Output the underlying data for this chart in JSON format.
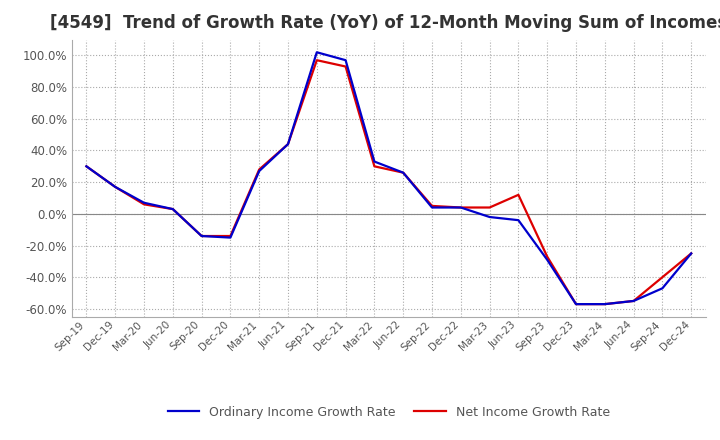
{
  "title": "[4549]  Trend of Growth Rate (YoY) of 12-Month Moving Sum of Incomes",
  "ylim": [
    -0.65,
    1.1
  ],
  "yticks": [
    -0.6,
    -0.4,
    -0.2,
    0.0,
    0.2,
    0.4,
    0.6,
    0.8,
    1.0
  ],
  "x_labels": [
    "Sep-19",
    "Dec-19",
    "Mar-20",
    "Jun-20",
    "Sep-20",
    "Dec-20",
    "Mar-21",
    "Jun-21",
    "Sep-21",
    "Dec-21",
    "Mar-22",
    "Jun-22",
    "Sep-22",
    "Dec-22",
    "Mar-23",
    "Jun-23",
    "Sep-23",
    "Dec-23",
    "Mar-24",
    "Jun-24",
    "Sep-24",
    "Dec-24"
  ],
  "ordinary_income": [
    0.3,
    0.17,
    0.07,
    0.03,
    -0.14,
    -0.15,
    0.27,
    0.44,
    1.02,
    0.97,
    0.33,
    0.26,
    0.04,
    0.04,
    -0.02,
    -0.04,
    -0.29,
    -0.57,
    -0.57,
    -0.55,
    -0.47,
    -0.25
  ],
  "net_income": [
    0.3,
    0.17,
    0.06,
    0.03,
    -0.14,
    -0.14,
    0.28,
    0.44,
    0.97,
    0.93,
    0.3,
    0.26,
    0.05,
    0.04,
    0.04,
    0.12,
    -0.27,
    -0.57,
    -0.57,
    -0.55,
    -0.4,
    -0.25
  ],
  "ordinary_color": "#0000cc",
  "net_color": "#dd0000",
  "line_width": 1.6,
  "legend_ordinary": "Ordinary Income Growth Rate",
  "legend_net": "Net Income Growth Rate",
  "grid_color": "#aaaaaa",
  "zero_line_color": "#888888",
  "background_color": "#ffffff",
  "title_color": "#333333",
  "title_fontsize": 12,
  "border_color": "#aaaaaa"
}
